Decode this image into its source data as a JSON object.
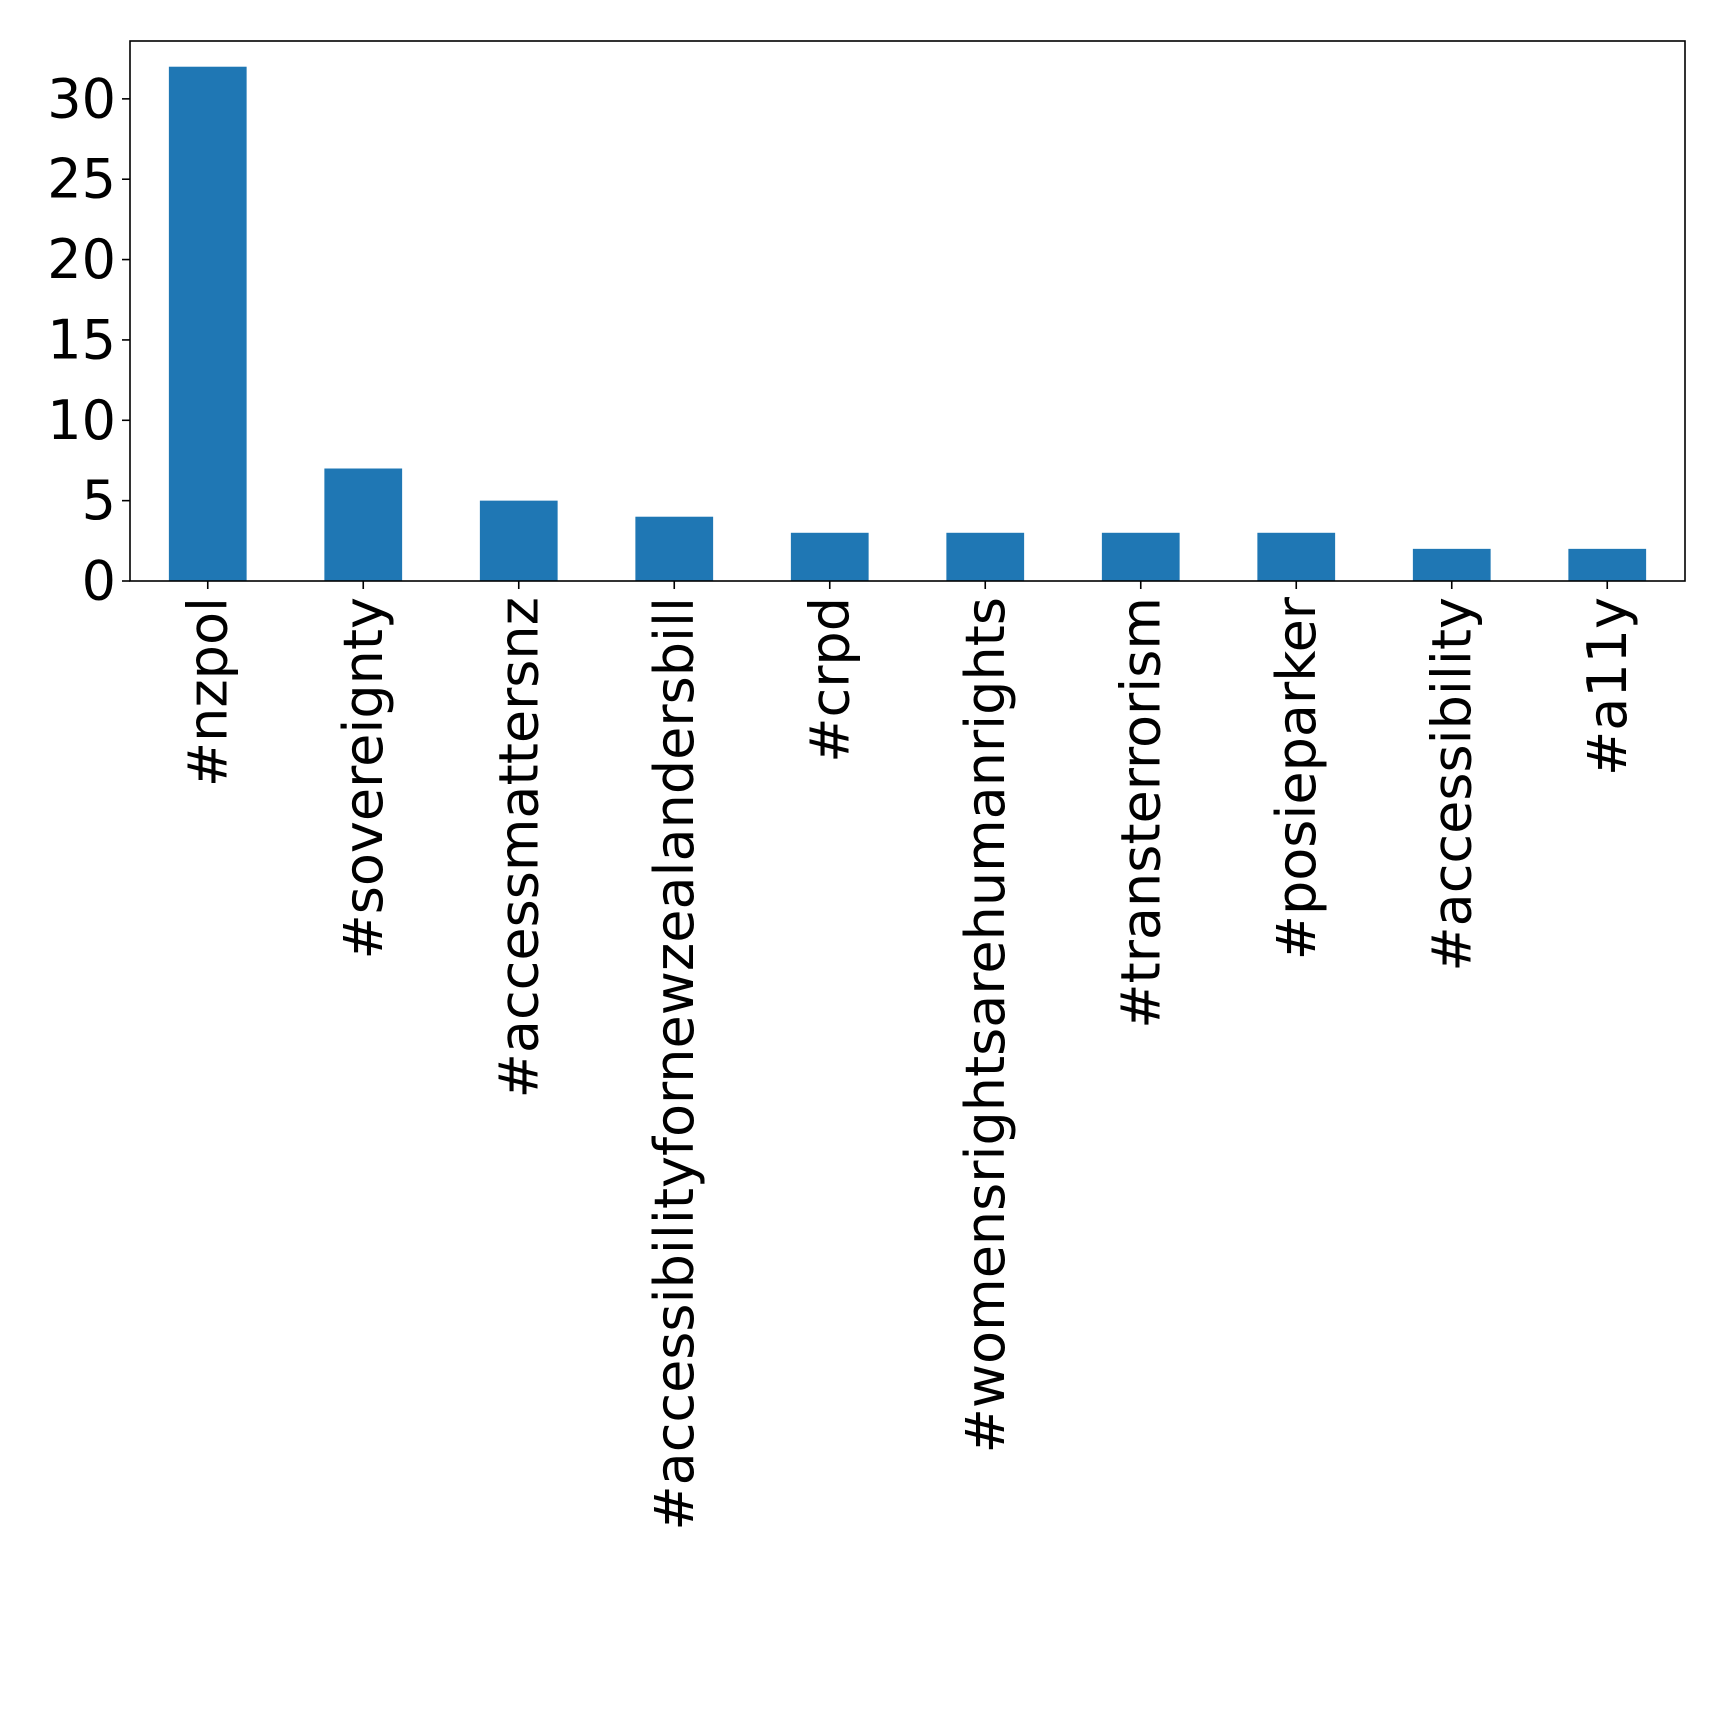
{
  "chart_data": {
    "type": "bar",
    "title": "",
    "xlabel": "",
    "ylabel": "",
    "categories": [
      "#nzpol",
      "#sovereignty",
      "#accessmattersnz",
      "#accessibilityfornewzealandersbill",
      "#crpd",
      "#womensrightsarehumanrights",
      "#transterrorism",
      "#posieparker",
      "#accessibility",
      "#a11y"
    ],
    "values": [
      32,
      7,
      5,
      4,
      3,
      3,
      3,
      3,
      2,
      2
    ],
    "ylim": [
      0,
      33.6
    ],
    "yticks": [
      0,
      5,
      10,
      15,
      20,
      25,
      30
    ],
    "bar_color": "#1f77b4",
    "grid": false,
    "legend": "none"
  }
}
